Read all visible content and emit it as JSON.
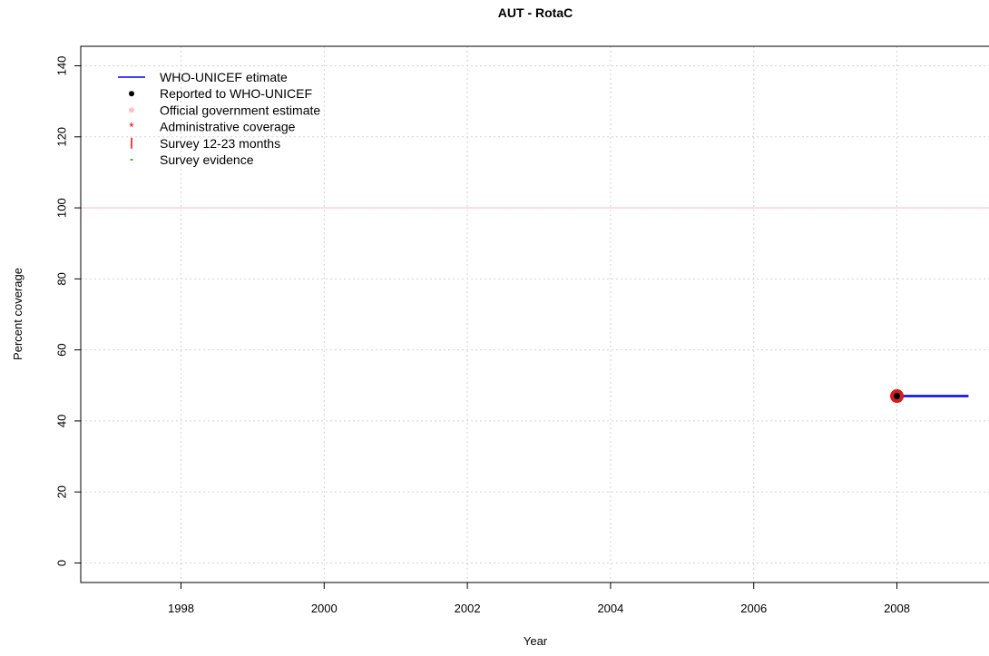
{
  "chart_data": {
    "type": "line",
    "title": "AUT  -  RotaC",
    "xlabel": "Year",
    "ylabel": "Percent coverage",
    "xlim": [
      1996.6,
      2009.4
    ],
    "ylim": [
      -5.5,
      145.5
    ],
    "x_ticks": [
      1998,
      2000,
      2002,
      2004,
      2006,
      2008
    ],
    "y_ticks": [
      0,
      20,
      40,
      60,
      80,
      100,
      120,
      140
    ],
    "grid": true,
    "legend_position": "top-left",
    "legend": [
      {
        "label": "WHO-UNICEF etimate",
        "symbol": "line",
        "color": "#0000ff"
      },
      {
        "label": "Reported to WHO-UNICEF",
        "symbol": "dot",
        "color": "#000000"
      },
      {
        "label": "Official government estimate",
        "symbol": "dot",
        "color": "#ffc0cb"
      },
      {
        "label": "Administrative coverage",
        "symbol": "star",
        "color": "#ff0000"
      },
      {
        "label": "Survey 12-23 months",
        "symbol": "bar",
        "color": "#ff0000"
      },
      {
        "label": "Survey evidence",
        "symbol": "dash",
        "color": "#00aa00"
      }
    ],
    "reference_line": {
      "y": 100,
      "color": "#ffc0cb"
    },
    "series": [
      {
        "name": "WHO-UNICEF etimate",
        "kind": "line",
        "color": "#0000ff",
        "x": [
          2008,
          2009
        ],
        "y": [
          47,
          47
        ]
      },
      {
        "name": "Administrative coverage",
        "kind": "marker",
        "color": "#ff0000",
        "x": [
          2008
        ],
        "y": [
          47
        ]
      },
      {
        "name": "Reported to WHO-UNICEF",
        "kind": "marker",
        "color": "#000000",
        "x": [
          2008
        ],
        "y": [
          47
        ]
      }
    ]
  }
}
